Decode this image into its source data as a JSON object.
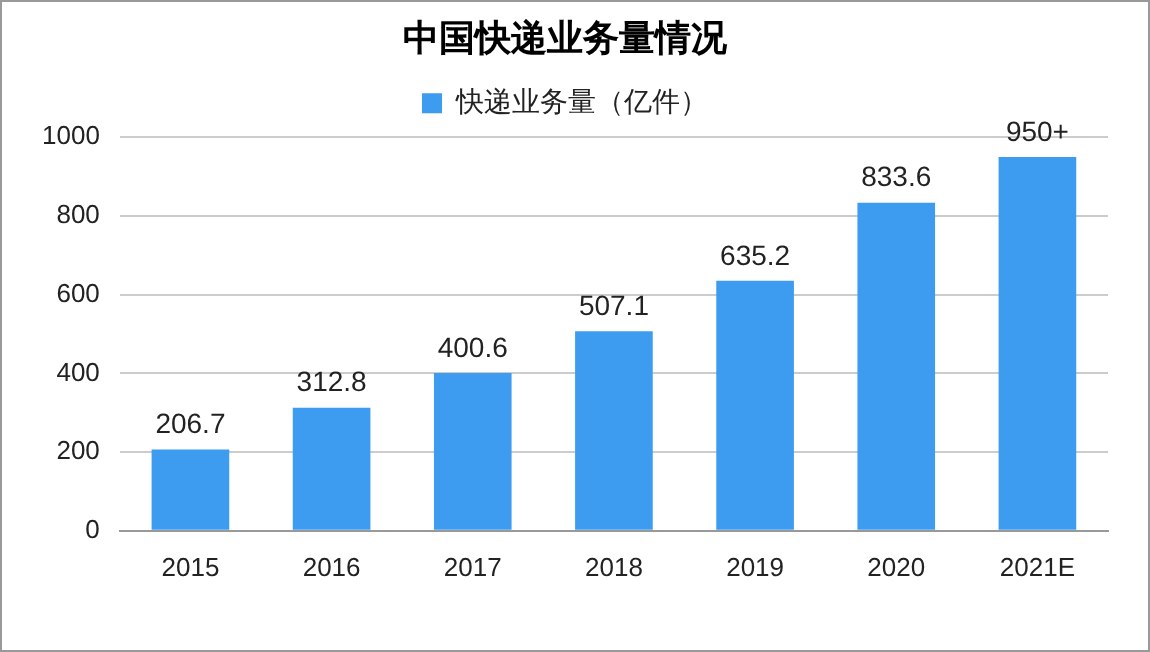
{
  "chart_data": {
    "type": "bar",
    "title": "中国快递业务量情况",
    "categories": [
      "2015",
      "2016",
      "2017",
      "2018",
      "2019",
      "2020",
      "2021E"
    ],
    "series": [
      {
        "name": "快递业务量（亿件）",
        "color": "#3d9cf0",
        "values": [
          206.7,
          312.8,
          400.6,
          507.1,
          635.2,
          833.6,
          950
        ],
        "value_labels": [
          "206.7",
          "312.8",
          "400.6",
          "507.1",
          "635.2",
          "833.6",
          "950+"
        ]
      }
    ],
    "ylim": [
      0,
      1000
    ],
    "yticks": [
      0,
      200,
      400,
      600,
      800,
      1000
    ],
    "grid": "y",
    "legend": "top"
  }
}
